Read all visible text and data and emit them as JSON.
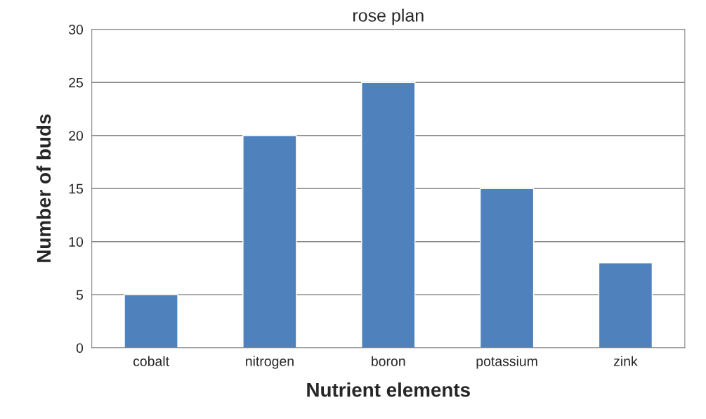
{
  "chart_data": {
    "type": "bar",
    "title": "rose plan",
    "xlabel": "Nutrient elements",
    "ylabel": "Number of buds",
    "categories": [
      "cobalt",
      "nitrogen",
      "boron",
      "potassium",
      "zink"
    ],
    "values": [
      5,
      20,
      25,
      15,
      8
    ],
    "color": "#4f81bd",
    "ylim": [
      0,
      30
    ],
    "yticks": [
      0,
      5,
      10,
      15,
      20,
      25,
      30
    ],
    "grid": "y",
    "legend": false
  }
}
